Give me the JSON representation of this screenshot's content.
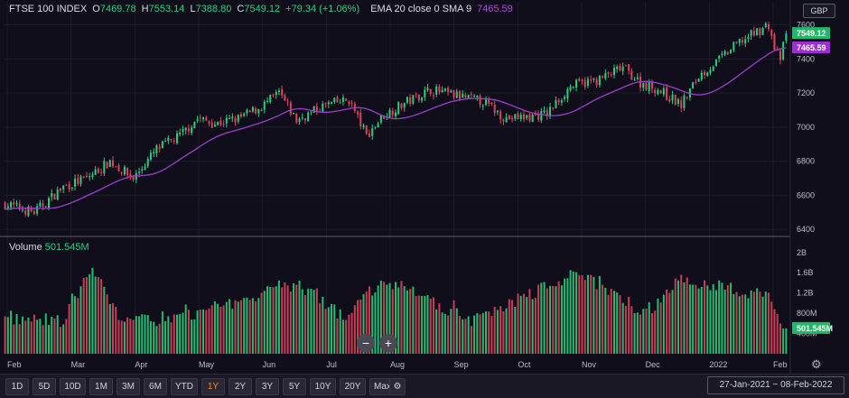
{
  "legend": {
    "instrument": "FTSE 100 INDEX",
    "o_label": "O",
    "o_value": "7469.78",
    "h_label": "H",
    "h_value": "7553.14",
    "l_label": "L",
    "l_value": "7388.80",
    "c_label": "C",
    "c_value": "7549.12",
    "change": "+79.34 (+1.06%)",
    "ema_label": "EMA 20 close 0 SMA 9",
    "ema_value": "7465.59"
  },
  "volume_legend": {
    "label": "Volume",
    "value": "501.545M"
  },
  "currency": "GBP",
  "price_tags": {
    "last": "7549.12",
    "ema": "7465.59",
    "volume": "501.545M"
  },
  "colors": {
    "up": "#26d07c",
    "down": "#e0415c",
    "ema": "#9b3fcb",
    "grid": "#1e1b2b"
  },
  "ranges": [
    "1D",
    "5D",
    "10D",
    "1M",
    "3M",
    "6M",
    "YTD",
    "1Y",
    "2Y",
    "3Y",
    "5Y",
    "10Y",
    "20Y",
    "Max"
  ],
  "active_range": "1Y",
  "date_range": "27-Jan-2021  −  08-Feb-2022",
  "chart_data": {
    "type": "candlestick",
    "price_axis": {
      "ticks": [
        6400,
        6600,
        6800,
        7000,
        7200,
        7400,
        7600
      ],
      "range": [
        6380,
        7640
      ]
    },
    "volume_axis": {
      "ticks": [
        "2B",
        "1.6B",
        "1.2B",
        "800M",
        "400M"
      ],
      "values": [
        2000,
        1600,
        1200,
        800,
        400
      ],
      "range": [
        0,
        2000
      ],
      "unit": "M"
    },
    "x_labels": [
      "Feb",
      "Mar",
      "Apr",
      "May",
      "Jun",
      "Jul",
      "Aug",
      "Sep",
      "Oct",
      "Nov",
      "Dec",
      "2022",
      "Feb"
    ],
    "anchors": [
      [
        0,
        6550
      ],
      [
        10,
        6500
      ],
      [
        20,
        6650
      ],
      [
        28,
        6700
      ],
      [
        36,
        6800
      ],
      [
        44,
        6700
      ],
      [
        52,
        6870
      ],
      [
        60,
        6950
      ],
      [
        66,
        7050
      ],
      [
        72,
        7020
      ],
      [
        80,
        7050
      ],
      [
        88,
        7120
      ],
      [
        94,
        7200
      ],
      [
        100,
        7040
      ],
      [
        110,
        7130
      ],
      [
        118,
        7160
      ],
      [
        124,
        6950
      ],
      [
        130,
        7070
      ],
      [
        138,
        7150
      ],
      [
        146,
        7220
      ],
      [
        156,
        7180
      ],
      [
        164,
        7150
      ],
      [
        172,
        7050
      ],
      [
        180,
        7060
      ],
      [
        186,
        7080
      ],
      [
        194,
        7240
      ],
      [
        204,
        7280
      ],
      [
        212,
        7350
      ],
      [
        218,
        7260
      ],
      [
        224,
        7220
      ],
      [
        232,
        7130
      ],
      [
        238,
        7300
      ],
      [
        244,
        7380
      ],
      [
        252,
        7500
      ],
      [
        258,
        7560
      ],
      [
        262,
        7600
      ],
      [
        264,
        7460
      ],
      [
        266,
        7400
      ],
      [
        268,
        7549
      ]
    ],
    "volume_anchors": [
      [
        0,
        800
      ],
      [
        20,
        780
      ],
      [
        30,
        1800
      ],
      [
        40,
        760
      ],
      [
        60,
        820
      ],
      [
        100,
        1500
      ],
      [
        116,
        850
      ],
      [
        130,
        1600
      ],
      [
        160,
        780
      ],
      [
        196,
        1700
      ],
      [
        204,
        1500
      ],
      [
        220,
        900
      ],
      [
        232,
        1600
      ],
      [
        262,
        1250
      ],
      [
        268,
        500
      ]
    ],
    "last": 7549.12,
    "ema_last": 7465.59,
    "volume_last": 501.545
  }
}
